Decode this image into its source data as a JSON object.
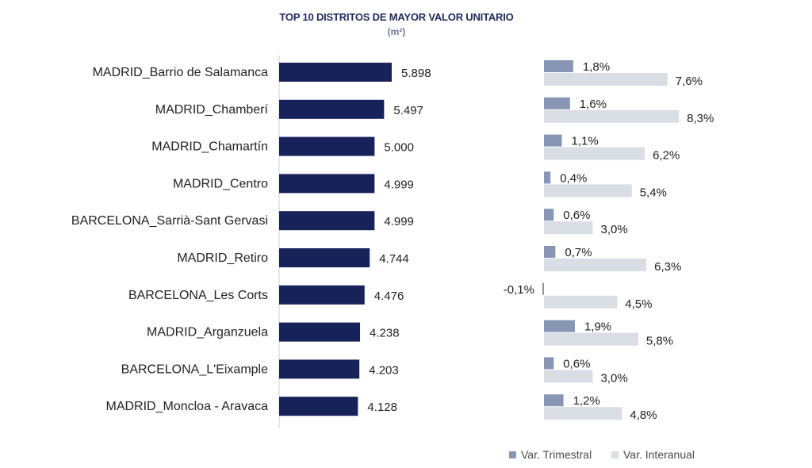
{
  "chart_data": {
    "type": "bar",
    "title": "TOP 10 DISTRITOS DE MAYOR VALOR UNITARIO",
    "subtitle": "(m²)",
    "categories": [
      "MADRID_Barrio de Salamanca",
      "MADRID_Chamberí",
      "MADRID_Chamartín",
      "MADRID_Centro",
      "BARCELONA_Sarrià-Sant Gervasi",
      "MADRID_Retiro",
      "BARCELONA_Les Corts",
      "MADRID_Arganzuela",
      "BARCELONA_L'Eixample",
      "MADRID_Moncloa - Aravaca"
    ],
    "values": [
      5898,
      5497,
      5000,
      4999,
      4999,
      4744,
      4476,
      4238,
      4203,
      4128
    ],
    "value_labels": [
      "5.898",
      "5.497",
      "5.000",
      "4.999",
      "4.999",
      "4.744",
      "4.476",
      "4.238",
      "4.203",
      "4.128"
    ],
    "series": [
      {
        "name": "Var. Trimestral",
        "color": "#8796b4",
        "values": [
          1.8,
          1.6,
          1.1,
          0.4,
          0.6,
          0.7,
          -0.1,
          1.9,
          0.6,
          1.2
        ],
        "labels": [
          "1,8%",
          "1,6%",
          "1,1%",
          "0,4%",
          "0,6%",
          "0,7%",
          "-0,1%",
          "1,9%",
          "0,6%",
          "1,2%"
        ]
      },
      {
        "name": "Var. Interanual",
        "color": "#d9dde4",
        "values": [
          7.6,
          8.3,
          6.2,
          5.4,
          3.0,
          6.3,
          4.5,
          5.8,
          3.0,
          4.8
        ],
        "labels": [
          "7,6%",
          "8,3%",
          "6,2%",
          "5,4%",
          "3,0%",
          "6,3%",
          "4,5%",
          "5,8%",
          "3,0%",
          "4,8%"
        ]
      }
    ],
    "main_bar_color": "#17215a",
    "legend": [
      "Var. Trimestral",
      "Var. Interanual"
    ],
    "legend_position": "bottom-right"
  }
}
